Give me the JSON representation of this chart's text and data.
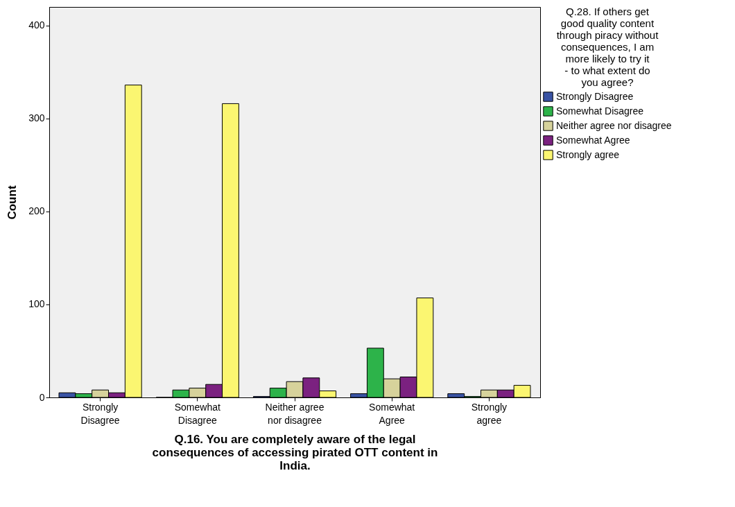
{
  "chart_data": {
    "type": "bar",
    "xlabel": "Q.16. You are completely aware of the legal consequences of accessing pirated OTT content in India.",
    "ylabel": "Count",
    "legend_title": "Q.28. If others get good quality content through piracy without consequences, I am more likely to try it - to what extent do you agree?",
    "categories": [
      "Strongly Disagree",
      "Somewhat Disagree",
      "Neither agree nor disagree",
      "Somewhat Agree",
      "Strongly agree"
    ],
    "series": [
      {
        "name": "Strongly Disagree",
        "color": "#3953a4",
        "values": [
          5,
          0,
          1,
          4,
          4
        ]
      },
      {
        "name": "Somewhat Disagree",
        "color": "#2db34a",
        "values": [
          4,
          8,
          10,
          53,
          1
        ]
      },
      {
        "name": "Neither agree nor disagree",
        "color": "#d6d29b",
        "values": [
          8,
          10,
          17,
          20,
          8
        ]
      },
      {
        "name": "Somewhat Agree",
        "color": "#7b2180",
        "values": [
          5,
          14,
          21,
          22,
          8
        ]
      },
      {
        "name": "Strongly agree",
        "color": "#fbf671",
        "values": [
          336,
          316,
          7,
          107,
          13
        ]
      }
    ],
    "ylim": [
      0,
      420
    ],
    "yticks": [
      0,
      100,
      200,
      300,
      400
    ],
    "grid": false,
    "legend": "top right"
  }
}
